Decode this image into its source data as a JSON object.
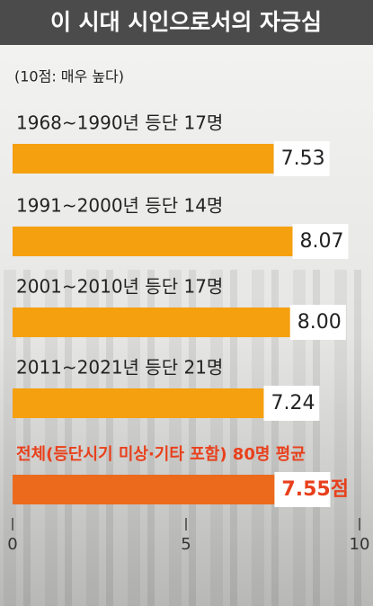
{
  "chart_data": {
    "type": "bar",
    "orientation": "horizontal",
    "title": "이 시대 시인으로서의 자긍심",
    "subtitle": "(10점: 매우 높다)",
    "categories": [
      "1968~1990년 등단 17명",
      "1991~2000년 등단 14명",
      "2001~2010년 등단 17명",
      "2011~2021년 등단 21명",
      "전체(등단시기 미상·기타 포함) 80명 평균"
    ],
    "values": [
      7.53,
      8.07,
      8.0,
      7.24,
      7.55
    ],
    "value_labels": [
      "7.53",
      "8.07",
      "8.00",
      "7.24",
      "7.55점"
    ],
    "colors": [
      "#f5a00f",
      "#f5a00f",
      "#f5a00f",
      "#f5a00f",
      "#ec6a1c"
    ],
    "label_colors": [
      "#222222",
      "#222222",
      "#222222",
      "#222222",
      "#e8401c"
    ],
    "xlim": [
      0,
      10
    ],
    "xticks": [
      0,
      5,
      10
    ]
  }
}
